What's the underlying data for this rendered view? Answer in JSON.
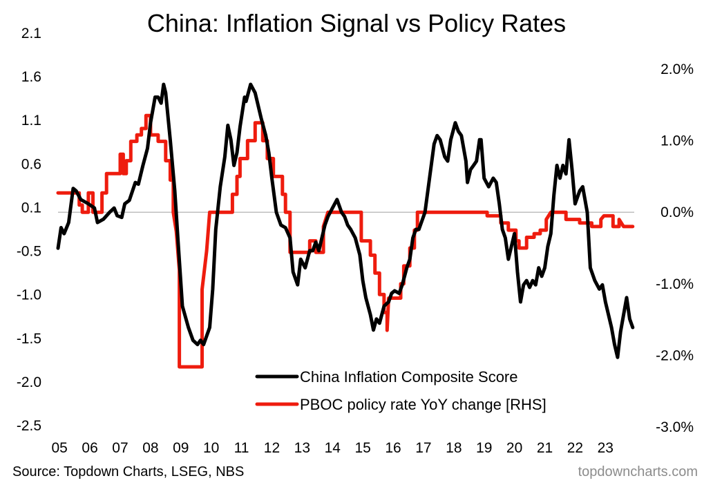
{
  "chart_data": {
    "type": "line",
    "title": "China: Inflation Signal vs Policy Rates",
    "source": "Source: Topdown Charts, LSEG, NBS",
    "brand": "topdowncharts.com",
    "x_ticks": [
      "05",
      "06",
      "07",
      "08",
      "09",
      "10",
      "11",
      "12",
      "13",
      "14",
      "15",
      "16",
      "17",
      "18",
      "19",
      "20",
      "21",
      "22",
      "23"
    ],
    "x_range": [
      2005.0,
      2024.0
    ],
    "y_left": {
      "ticks": [
        "2.1",
        "1.6",
        "1.1",
        "0.6",
        "0.1",
        "-0.5",
        "-1.0",
        "-1.5",
        "-2.0",
        "-2.5"
      ],
      "range": [
        -2.5,
        2.1
      ]
    },
    "y_right": {
      "ticks": [
        "2.0%",
        "1.0%",
        "0.0%",
        "-1.0%",
        "-2.0%",
        "-3.0%"
      ],
      "range": [
        -3.0,
        2.0
      ],
      "unit": "%"
    },
    "grid": false,
    "legend_placement": "bottom-right",
    "series": [
      {
        "name": "China Inflation Composite Score",
        "axis": "left",
        "color": "#000000",
        "points": [
          [
            2005.0,
            -0.42
          ],
          [
            2005.1,
            -0.18
          ],
          [
            2005.2,
            -0.25
          ],
          [
            2005.35,
            -0.12
          ],
          [
            2005.5,
            0.28
          ],
          [
            2005.6,
            0.25
          ],
          [
            2005.75,
            0.15
          ],
          [
            2005.9,
            0.12
          ],
          [
            2006.0,
            0.1
          ],
          [
            2006.2,
            0.05
          ],
          [
            2006.3,
            -0.12
          ],
          [
            2006.5,
            -0.08
          ],
          [
            2006.7,
            0.0
          ],
          [
            2006.85,
            0.05
          ],
          [
            2006.95,
            -0.04
          ],
          [
            2007.1,
            -0.06
          ],
          [
            2007.2,
            0.1
          ],
          [
            2007.35,
            0.14
          ],
          [
            2007.55,
            0.35
          ],
          [
            2007.65,
            0.33
          ],
          [
            2007.8,
            0.55
          ],
          [
            2007.95,
            0.75
          ],
          [
            2008.05,
            1.05
          ],
          [
            2008.2,
            1.35
          ],
          [
            2008.3,
            1.35
          ],
          [
            2008.4,
            1.28
          ],
          [
            2008.48,
            1.5
          ],
          [
            2008.55,
            1.4
          ],
          [
            2008.7,
            0.85
          ],
          [
            2008.85,
            0.25
          ],
          [
            2008.95,
            -0.3
          ],
          [
            2009.1,
            -1.1
          ],
          [
            2009.3,
            -1.35
          ],
          [
            2009.45,
            -1.5
          ],
          [
            2009.6,
            -1.55
          ],
          [
            2009.7,
            -1.5
          ],
          [
            2009.8,
            -1.55
          ],
          [
            2009.9,
            -1.45
          ],
          [
            2010.0,
            -1.35
          ],
          [
            2010.1,
            -0.9
          ],
          [
            2010.2,
            -0.2
          ],
          [
            2010.35,
            0.3
          ],
          [
            2010.5,
            0.65
          ],
          [
            2010.6,
            1.02
          ],
          [
            2010.7,
            0.85
          ],
          [
            2010.8,
            0.55
          ],
          [
            2010.9,
            0.7
          ],
          [
            2011.0,
            1.0
          ],
          [
            2011.15,
            1.35
          ],
          [
            2011.2,
            1.3
          ],
          [
            2011.35,
            1.5
          ],
          [
            2011.5,
            1.4
          ],
          [
            2011.7,
            1.1
          ],
          [
            2011.85,
            0.9
          ],
          [
            2011.95,
            0.7
          ],
          [
            2012.05,
            0.4
          ],
          [
            2012.2,
            0.0
          ],
          [
            2012.35,
            -0.15
          ],
          [
            2012.5,
            -0.18
          ],
          [
            2012.65,
            -0.3
          ],
          [
            2012.75,
            -0.7
          ],
          [
            2012.9,
            -0.85
          ],
          [
            2013.0,
            -0.55
          ],
          [
            2013.15,
            -0.65
          ],
          [
            2013.3,
            -0.45
          ],
          [
            2013.4,
            -0.45
          ],
          [
            2013.5,
            -0.35
          ],
          [
            2013.6,
            -0.45
          ],
          [
            2013.7,
            -0.3
          ],
          [
            2013.8,
            -0.15
          ],
          [
            2013.9,
            -0.05
          ],
          [
            2014.05,
            0.05
          ],
          [
            2014.2,
            0.15
          ],
          [
            2014.35,
            0.0
          ],
          [
            2014.45,
            -0.05
          ],
          [
            2014.55,
            -0.15
          ],
          [
            2014.65,
            -0.2
          ],
          [
            2014.8,
            -0.3
          ],
          [
            2014.95,
            -0.5
          ],
          [
            2015.05,
            -0.8
          ],
          [
            2015.15,
            -1.0
          ],
          [
            2015.3,
            -1.2
          ],
          [
            2015.4,
            -1.38
          ],
          [
            2015.5,
            -1.25
          ],
          [
            2015.6,
            -1.3
          ],
          [
            2015.75,
            -1.1
          ],
          [
            2015.9,
            -1.05
          ],
          [
            2016.0,
            -0.95
          ],
          [
            2016.1,
            -0.92
          ],
          [
            2016.25,
            -0.95
          ],
          [
            2016.35,
            -0.85
          ],
          [
            2016.5,
            -0.65
          ],
          [
            2016.6,
            -0.55
          ],
          [
            2016.7,
            -0.3
          ],
          [
            2016.8,
            -0.2
          ],
          [
            2016.9,
            -0.2
          ],
          [
            2017.0,
            -0.1
          ],
          [
            2017.1,
            0.0
          ],
          [
            2017.25,
            0.4
          ],
          [
            2017.4,
            0.8
          ],
          [
            2017.5,
            0.9
          ],
          [
            2017.6,
            0.85
          ],
          [
            2017.75,
            0.65
          ],
          [
            2017.85,
            0.6
          ],
          [
            2017.95,
            0.85
          ],
          [
            2018.1,
            1.05
          ],
          [
            2018.2,
            0.95
          ],
          [
            2018.3,
            0.9
          ],
          [
            2018.45,
            0.6
          ],
          [
            2018.5,
            0.35
          ],
          [
            2018.6,
            0.5
          ],
          [
            2018.7,
            0.55
          ],
          [
            2018.8,
            0.6
          ],
          [
            2018.9,
            0.85
          ],
          [
            2018.95,
            0.85
          ],
          [
            2019.05,
            0.4
          ],
          [
            2019.2,
            0.3
          ],
          [
            2019.35,
            0.4
          ],
          [
            2019.45,
            0.35
          ],
          [
            2019.55,
            0.1
          ],
          [
            2019.65,
            -0.2
          ],
          [
            2019.75,
            -0.3
          ],
          [
            2019.85,
            -0.55
          ],
          [
            2019.95,
            -0.4
          ],
          [
            2020.05,
            -0.25
          ],
          [
            2020.15,
            -0.7
          ],
          [
            2020.25,
            -1.05
          ],
          [
            2020.35,
            -0.85
          ],
          [
            2020.45,
            -0.8
          ],
          [
            2020.55,
            -0.88
          ],
          [
            2020.65,
            -0.8
          ],
          [
            2020.75,
            -0.85
          ],
          [
            2020.85,
            -0.65
          ],
          [
            2020.95,
            -0.75
          ],
          [
            2021.05,
            -0.65
          ],
          [
            2021.15,
            -0.4
          ],
          [
            2021.25,
            -0.25
          ],
          [
            2021.35,
            0.2
          ],
          [
            2021.45,
            0.55
          ],
          [
            2021.55,
            0.4
          ],
          [
            2021.65,
            0.55
          ],
          [
            2021.75,
            0.45
          ],
          [
            2021.85,
            0.85
          ],
          [
            2021.95,
            0.5
          ],
          [
            2022.05,
            0.1
          ],
          [
            2022.2,
            0.25
          ],
          [
            2022.3,
            0.3
          ],
          [
            2022.45,
            0.0
          ],
          [
            2022.55,
            -0.65
          ],
          [
            2022.7,
            -0.8
          ],
          [
            2022.85,
            -0.9
          ],
          [
            2022.95,
            -0.85
          ],
          [
            2023.05,
            -1.05
          ],
          [
            2023.15,
            -1.2
          ],
          [
            2023.25,
            -1.35
          ],
          [
            2023.35,
            -1.55
          ],
          [
            2023.45,
            -1.7
          ],
          [
            2023.55,
            -1.4
          ],
          [
            2023.65,
            -1.2
          ],
          [
            2023.75,
            -1.0
          ],
          [
            2023.85,
            -1.25
          ],
          [
            2023.95,
            -1.35
          ]
        ]
      },
      {
        "name": "PBOC policy rate YoY change [RHS]",
        "axis": "right",
        "color": "#ee1c0e",
        "points": [
          [
            2005.0,
            0.27
          ],
          [
            2005.7,
            0.27
          ],
          [
            2005.7,
            0.1
          ],
          [
            2005.8,
            0.1
          ],
          [
            2005.8,
            0.0
          ],
          [
            2006.0,
            0.0
          ],
          [
            2006.0,
            0.27
          ],
          [
            2006.15,
            0.27
          ],
          [
            2006.15,
            0.0
          ],
          [
            2006.45,
            0.0
          ],
          [
            2006.45,
            0.27
          ],
          [
            2006.6,
            0.27
          ],
          [
            2006.6,
            0.54
          ],
          [
            2007.05,
            0.54
          ],
          [
            2007.05,
            0.81
          ],
          [
            2007.15,
            0.81
          ],
          [
            2007.15,
            0.54
          ],
          [
            2007.25,
            0.54
          ],
          [
            2007.25,
            0.72
          ],
          [
            2007.4,
            0.72
          ],
          [
            2007.4,
            0.99
          ],
          [
            2007.6,
            0.99
          ],
          [
            2007.6,
            1.08
          ],
          [
            2007.75,
            1.08
          ],
          [
            2007.75,
            1.17
          ],
          [
            2007.9,
            1.17
          ],
          [
            2007.9,
            1.35
          ],
          [
            2008.05,
            1.35
          ],
          [
            2008.05,
            1.08
          ],
          [
            2008.3,
            1.08
          ],
          [
            2008.3,
            0.99
          ],
          [
            2008.55,
            0.99
          ],
          [
            2008.55,
            0.72
          ],
          [
            2008.7,
            0.72
          ],
          [
            2008.7,
            0.45
          ],
          [
            2008.8,
            0.45
          ],
          [
            2008.8,
            0.0
          ],
          [
            2008.9,
            -0.27
          ],
          [
            2008.95,
            -0.54
          ],
          [
            2009.0,
            -0.81
          ],
          [
            2009.0,
            -2.16
          ],
          [
            2009.75,
            -2.16
          ],
          [
            2009.75,
            -1.08
          ],
          [
            2009.9,
            -0.54
          ],
          [
            2010.0,
            0.0
          ],
          [
            2010.75,
            0.0
          ],
          [
            2010.75,
            0.25
          ],
          [
            2010.9,
            0.25
          ],
          [
            2010.9,
            0.5
          ],
          [
            2011.0,
            0.5
          ],
          [
            2011.0,
            0.75
          ],
          [
            2011.25,
            0.75
          ],
          [
            2011.25,
            1.0
          ],
          [
            2011.5,
            1.0
          ],
          [
            2011.5,
            1.25
          ],
          [
            2011.75,
            1.25
          ],
          [
            2011.75,
            1.0
          ],
          [
            2011.9,
            1.0
          ],
          [
            2011.9,
            0.75
          ],
          [
            2012.1,
            0.75
          ],
          [
            2012.1,
            0.5
          ],
          [
            2012.4,
            0.5
          ],
          [
            2012.4,
            0.25
          ],
          [
            2012.5,
            0.25
          ],
          [
            2012.5,
            0.0
          ],
          [
            2012.65,
            0.0
          ],
          [
            2012.65,
            -0.56
          ],
          [
            2013.3,
            -0.56
          ],
          [
            2013.3,
            -0.4
          ],
          [
            2013.5,
            -0.4
          ],
          [
            2013.5,
            -0.56
          ],
          [
            2013.75,
            -0.56
          ],
          [
            2013.75,
            -0.2
          ],
          [
            2013.9,
            0.0
          ],
          [
            2015.0,
            0.0
          ],
          [
            2015.0,
            -0.4
          ],
          [
            2015.3,
            -0.4
          ],
          [
            2015.3,
            -0.6
          ],
          [
            2015.45,
            -0.6
          ],
          [
            2015.45,
            -0.85
          ],
          [
            2015.6,
            -0.85
          ],
          [
            2015.6,
            -1.15
          ],
          [
            2015.75,
            -1.15
          ],
          [
            2015.75,
            -1.4
          ],
          [
            2015.85,
            -1.4
          ],
          [
            2015.85,
            -1.65
          ],
          [
            2015.9,
            -1.2
          ],
          [
            2016.3,
            -1.2
          ],
          [
            2016.3,
            -1.0
          ],
          [
            2016.4,
            -1.0
          ],
          [
            2016.4,
            -0.75
          ],
          [
            2016.6,
            -0.75
          ],
          [
            2016.6,
            -0.5
          ],
          [
            2016.75,
            -0.5
          ],
          [
            2016.75,
            -0.25
          ],
          [
            2016.85,
            -0.25
          ],
          [
            2016.85,
            0.0
          ],
          [
            2019.15,
            0.0
          ],
          [
            2019.15,
            -0.05
          ],
          [
            2019.6,
            -0.05
          ],
          [
            2019.6,
            -0.15
          ],
          [
            2019.85,
            -0.15
          ],
          [
            2019.85,
            -0.25
          ],
          [
            2020.1,
            -0.25
          ],
          [
            2020.1,
            -0.4
          ],
          [
            2020.2,
            -0.4
          ],
          [
            2020.2,
            -0.5
          ],
          [
            2020.45,
            -0.5
          ],
          [
            2020.45,
            -0.35
          ],
          [
            2020.7,
            -0.35
          ],
          [
            2020.7,
            -0.3
          ],
          [
            2020.9,
            -0.3
          ],
          [
            2020.9,
            -0.25
          ],
          [
            2021.1,
            -0.25
          ],
          [
            2021.1,
            -0.1
          ],
          [
            2021.25,
            0.0
          ],
          [
            2021.75,
            0.0
          ],
          [
            2021.75,
            -0.1
          ],
          [
            2022.2,
            -0.1
          ],
          [
            2022.2,
            -0.15
          ],
          [
            2022.6,
            -0.15
          ],
          [
            2022.6,
            -0.2
          ],
          [
            2022.9,
            -0.2
          ],
          [
            2022.9,
            -0.1
          ],
          [
            2023.0,
            -0.05
          ],
          [
            2023.3,
            -0.05
          ],
          [
            2023.3,
            -0.2
          ],
          [
            2023.5,
            -0.2
          ],
          [
            2023.5,
            -0.1
          ],
          [
            2023.65,
            -0.2
          ],
          [
            2023.95,
            -0.2
          ]
        ]
      }
    ]
  }
}
